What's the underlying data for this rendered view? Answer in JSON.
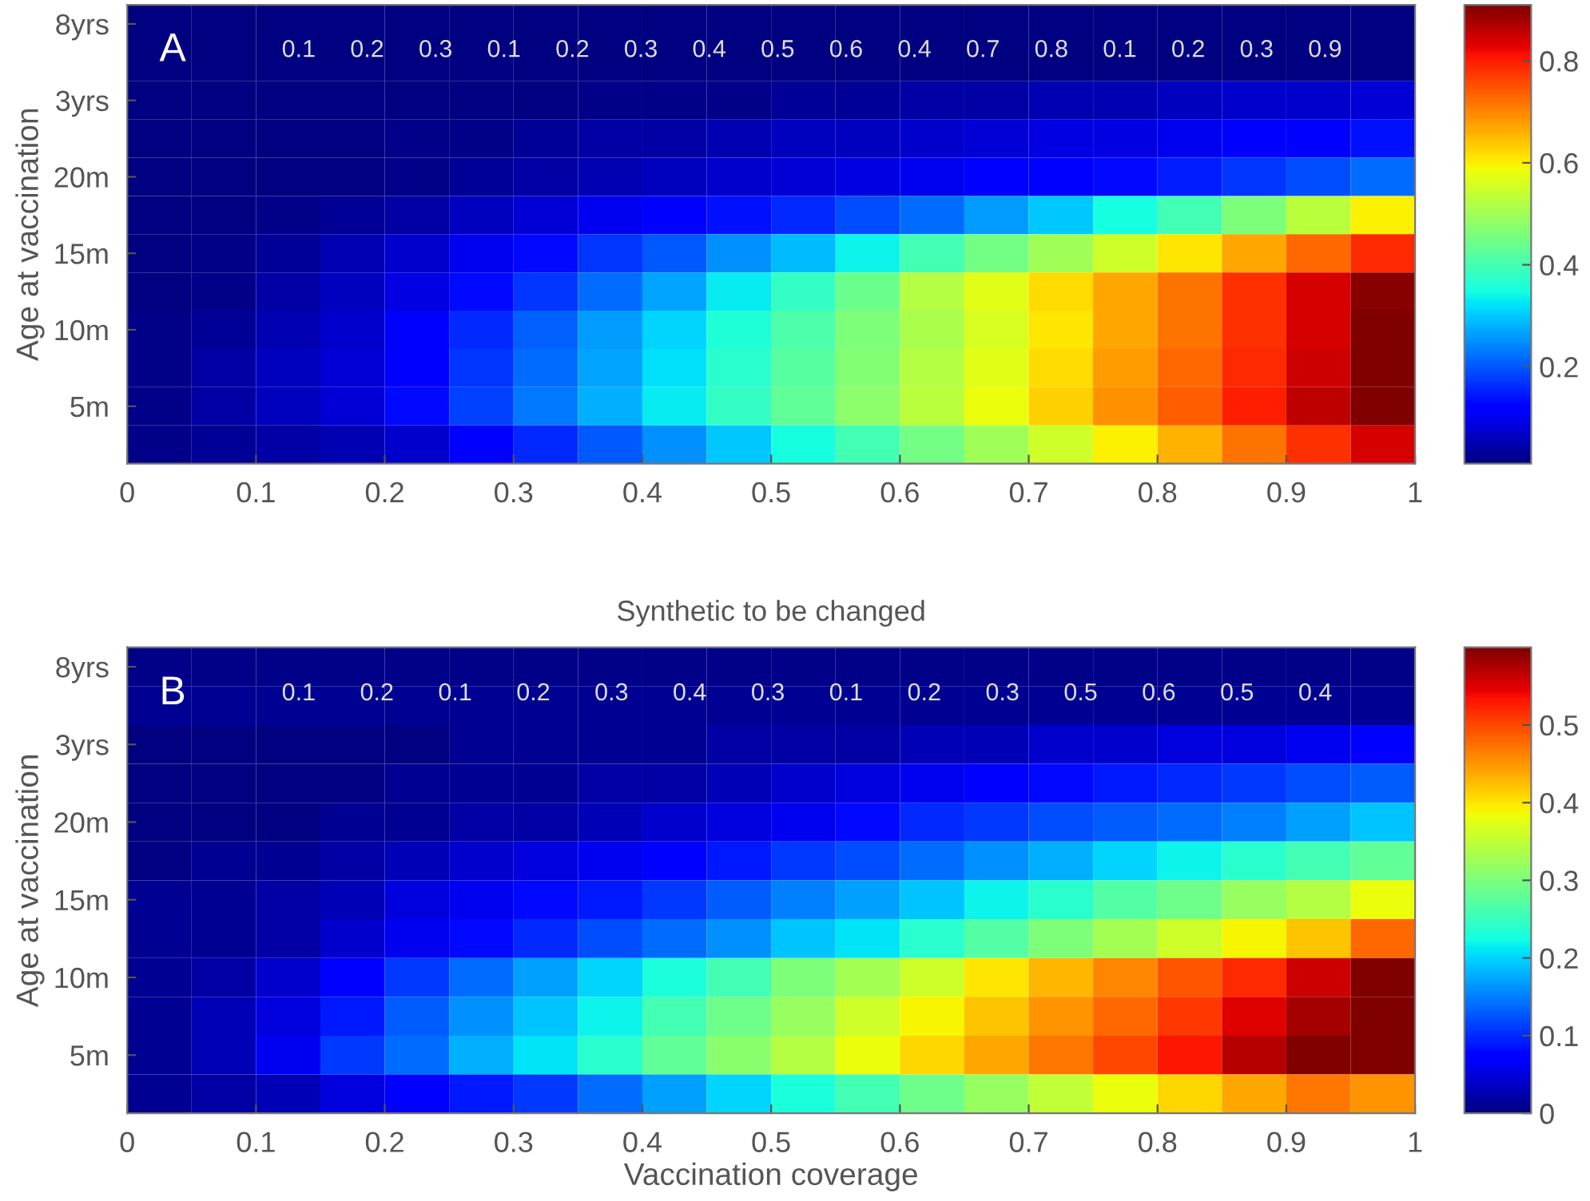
{
  "chart_data": [
    {
      "type": "heatmap",
      "ylabel": "Age at vaccination",
      "y_categories": [
        "8yrs",
        null,
        "3yrs",
        null,
        "20m",
        null,
        "15m",
        null,
        "10m",
        null,
        "5m",
        null
      ],
      "cells": [
        [
          0.01,
          0.01,
          0.01,
          0.01,
          0.01,
          0.01,
          0.01,
          0.01,
          0.01,
          0.01,
          0.01,
          0.01,
          0.01,
          0.01,
          0.01,
          0.01,
          0.01,
          0.01,
          0.01,
          0.01
        ],
        [
          0.01,
          0.01,
          0.01,
          0.01,
          0.01,
          0.01,
          0.01,
          0.01,
          0.01,
          0.01,
          0.01,
          0.01,
          0.01,
          0.01,
          0.01,
          0.01,
          0.01,
          0.01,
          0.01,
          0.01
        ],
        [
          0.01,
          0.01,
          0.01,
          0.01,
          0.01,
          0.01,
          0.01,
          0.02,
          0.02,
          0.02,
          0.03,
          0.03,
          0.04,
          0.04,
          0.05,
          0.05,
          0.06,
          0.07,
          0.07,
          0.08
        ],
        [
          0.01,
          0.01,
          0.01,
          0.01,
          0.02,
          0.02,
          0.03,
          0.04,
          0.04,
          0.05,
          0.06,
          0.06,
          0.07,
          0.08,
          0.09,
          0.09,
          0.1,
          0.11,
          0.12,
          0.14
        ],
        [
          0.01,
          0.01,
          0.01,
          0.01,
          0.02,
          0.03,
          0.04,
          0.05,
          0.06,
          0.07,
          0.08,
          0.09,
          0.1,
          0.11,
          0.12,
          0.13,
          0.15,
          0.17,
          0.19,
          0.22
        ],
        [
          0.01,
          0.01,
          0.02,
          0.03,
          0.04,
          0.06,
          0.08,
          0.1,
          0.12,
          0.14,
          0.16,
          0.19,
          0.22,
          0.26,
          0.3,
          0.35,
          0.4,
          0.46,
          0.53,
          0.6
        ],
        [
          0.01,
          0.02,
          0.03,
          0.05,
          0.07,
          0.1,
          0.13,
          0.17,
          0.2,
          0.25,
          0.29,
          0.34,
          0.4,
          0.45,
          0.5,
          0.55,
          0.61,
          0.67,
          0.73,
          0.79
        ],
        [
          0.01,
          0.02,
          0.04,
          0.06,
          0.09,
          0.13,
          0.17,
          0.22,
          0.27,
          0.33,
          0.38,
          0.44,
          0.52,
          0.57,
          0.62,
          0.67,
          0.72,
          0.78,
          0.84,
          0.9
        ],
        [
          0.02,
          0.03,
          0.05,
          0.07,
          0.11,
          0.16,
          0.21,
          0.26,
          0.31,
          0.36,
          0.41,
          0.46,
          0.51,
          0.56,
          0.61,
          0.67,
          0.72,
          0.78,
          0.84,
          0.91
        ],
        [
          0.02,
          0.04,
          0.06,
          0.08,
          0.12,
          0.17,
          0.22,
          0.27,
          0.32,
          0.37,
          0.42,
          0.47,
          0.52,
          0.57,
          0.62,
          0.68,
          0.73,
          0.79,
          0.85,
          0.91
        ],
        [
          0.02,
          0.04,
          0.06,
          0.08,
          0.13,
          0.18,
          0.23,
          0.28,
          0.33,
          0.38,
          0.43,
          0.48,
          0.53,
          0.58,
          0.63,
          0.69,
          0.74,
          0.8,
          0.86,
          0.91
        ],
        [
          0.02,
          0.03,
          0.04,
          0.05,
          0.07,
          0.12,
          0.16,
          0.2,
          0.25,
          0.3,
          0.35,
          0.4,
          0.45,
          0.5,
          0.55,
          0.6,
          0.66,
          0.72,
          0.78,
          0.84
        ]
      ],
      "xlim": [
        0,
        1
      ],
      "xticks": [
        0,
        0.1,
        0.2,
        0.3,
        0.4,
        0.5,
        0.6,
        0.7,
        0.8,
        0.9,
        1
      ],
      "clim": [
        0.01,
        0.91
      ],
      "cticks": [
        0.2,
        0.4,
        0.6,
        0.8
      ],
      "annotations": [
        "A",
        "0.1",
        "0.2",
        "0.3",
        "0.1",
        "0.2",
        "0.3",
        "0.4",
        "0.5",
        "0.6",
        "0.4",
        "0.7",
        "0.8",
        "0.1",
        "0.2",
        "0.3",
        "0.9"
      ]
    },
    {
      "type": "heatmap",
      "title": "Synthetic to be changed",
      "xlabel": "Vaccination coverage",
      "ylabel": "Age at vaccination",
      "y_categories": [
        "8yrs",
        null,
        "3yrs",
        null,
        "20m",
        null,
        "15m",
        null,
        "10m",
        null,
        "5m",
        null
      ],
      "cells": [
        [
          0.005,
          0.005,
          0.005,
          0.005,
          0.005,
          0.005,
          0.005,
          0.005,
          0.005,
          0.005,
          0.005,
          0.005,
          0.005,
          0.005,
          0.005,
          0.005,
          0.005,
          0.005,
          0.005,
          0.005
        ],
        [
          0.01,
          0.01,
          0.01,
          0.01,
          0.01,
          0.01,
          0.01,
          0.01,
          0.01,
          0.01,
          0.01,
          0.01,
          0.01,
          0.01,
          0.01,
          0.01,
          0.01,
          0.01,
          0.01,
          0.01
        ],
        [
          0,
          0,
          0,
          0,
          0,
          0.01,
          0.01,
          0.01,
          0.01,
          0.02,
          0.02,
          0.02,
          0.03,
          0.03,
          0.04,
          0.04,
          0.05,
          0.05,
          0.06,
          0.07
        ],
        [
          0,
          0,
          0,
          0,
          0.01,
          0.01,
          0.01,
          0.02,
          0.02,
          0.03,
          0.04,
          0.05,
          0.06,
          0.07,
          0.08,
          0.09,
          0.1,
          0.11,
          0.12,
          0.13
        ],
        [
          0,
          0,
          0,
          0.01,
          0.01,
          0.02,
          0.02,
          0.03,
          0.04,
          0.05,
          0.06,
          0.08,
          0.1,
          0.11,
          0.12,
          0.13,
          0.14,
          0.15,
          0.17,
          0.19
        ],
        [
          0,
          0.01,
          0.01,
          0.02,
          0.03,
          0.04,
          0.05,
          0.06,
          0.07,
          0.09,
          0.11,
          0.12,
          0.14,
          0.16,
          0.18,
          0.2,
          0.22,
          0.24,
          0.26,
          0.28
        ],
        [
          0.01,
          0.01,
          0.02,
          0.03,
          0.05,
          0.06,
          0.08,
          0.09,
          0.11,
          0.13,
          0.15,
          0.17,
          0.19,
          0.22,
          0.24,
          0.27,
          0.29,
          0.32,
          0.34,
          0.38
        ],
        [
          0.01,
          0.01,
          0.02,
          0.04,
          0.06,
          0.08,
          0.1,
          0.12,
          0.14,
          0.16,
          0.19,
          0.21,
          0.24,
          0.27,
          0.3,
          0.33,
          0.36,
          0.39,
          0.42,
          0.48
        ],
        [
          0.01,
          0.02,
          0.04,
          0.07,
          0.11,
          0.14,
          0.17,
          0.2,
          0.23,
          0.26,
          0.3,
          0.33,
          0.36,
          0.4,
          0.43,
          0.46,
          0.49,
          0.52,
          0.56,
          0.6
        ],
        [
          0.01,
          0.03,
          0.05,
          0.09,
          0.13,
          0.16,
          0.19,
          0.22,
          0.26,
          0.29,
          0.32,
          0.36,
          0.39,
          0.42,
          0.45,
          0.48,
          0.51,
          0.55,
          0.58,
          0.62
        ],
        [
          0.01,
          0.03,
          0.06,
          0.11,
          0.14,
          0.18,
          0.21,
          0.24,
          0.28,
          0.31,
          0.34,
          0.38,
          0.41,
          0.44,
          0.47,
          0.5,
          0.53,
          0.57,
          0.6,
          0.63
        ],
        [
          0.01,
          0.02,
          0.03,
          0.05,
          0.07,
          0.09,
          0.11,
          0.14,
          0.17,
          0.2,
          0.23,
          0.26,
          0.29,
          0.32,
          0.35,
          0.38,
          0.41,
          0.44,
          0.47,
          0.45
        ]
      ],
      "xlim": [
        0,
        1
      ],
      "xticks": [
        0,
        0.1,
        0.2,
        0.3,
        0.4,
        0.5,
        0.6,
        0.7,
        0.8,
        0.9,
        1
      ],
      "clim": [
        0,
        0.6
      ],
      "cticks": [
        0,
        0.1,
        0.2,
        0.3,
        0.4,
        0.5
      ],
      "annotations": [
        "B",
        "0.1",
        "0.2",
        "0.1",
        "0.2",
        "0.3",
        "0.4",
        "0.3",
        "0.1",
        "0.2",
        "0.3",
        "0.5",
        "0.6",
        "0.5",
        "0.4"
      ]
    }
  ]
}
